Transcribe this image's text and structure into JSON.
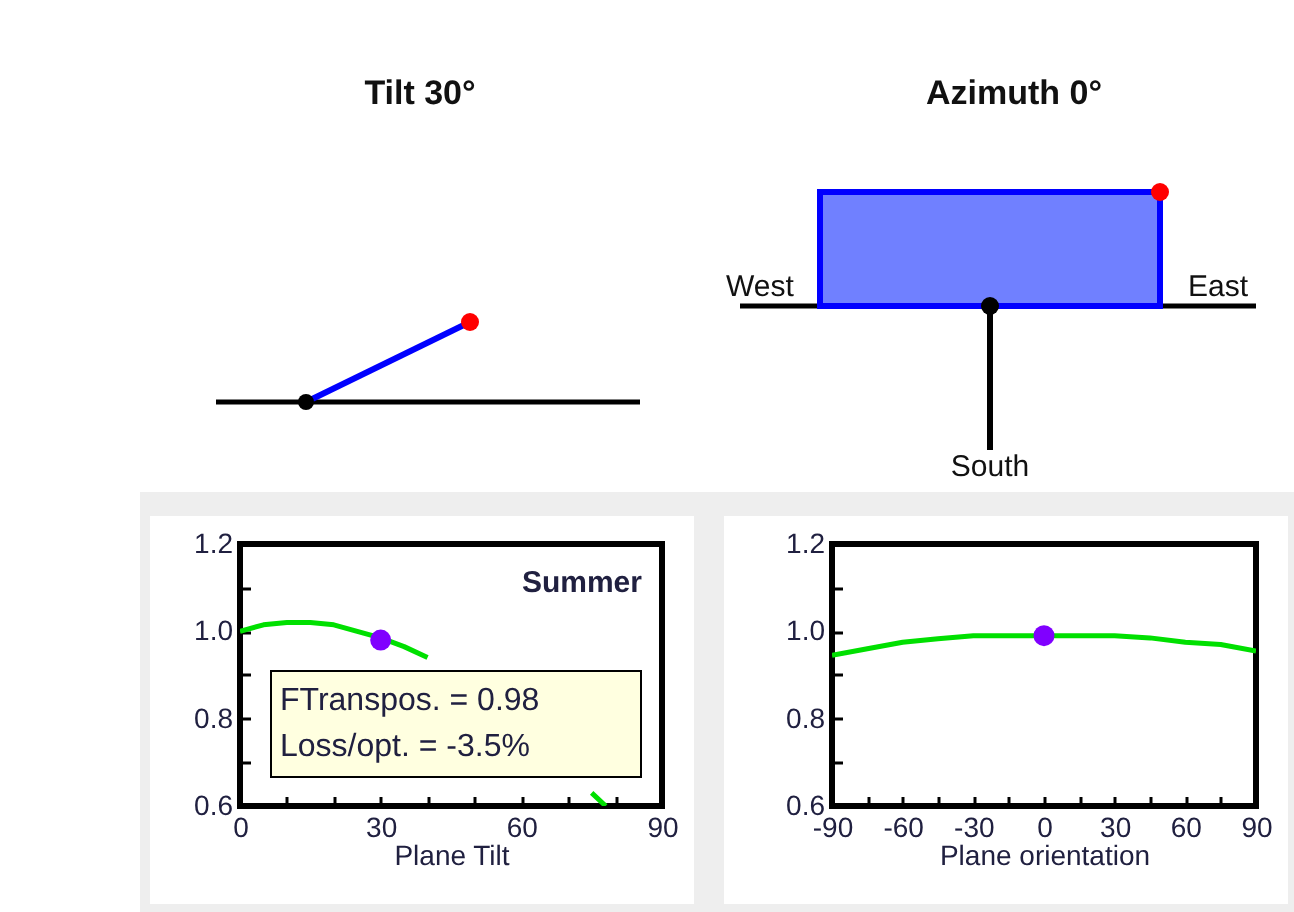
{
  "chart_data": [
    {
      "type": "other",
      "title": "Tilt 30°"
    },
    {
      "type": "other",
      "title": "Azimuth 0°",
      "annotations": [
        "West",
        "East",
        "South"
      ]
    },
    {
      "type": "line",
      "xlabel": "Plane Tilt",
      "x": [
        0,
        5,
        10,
        15,
        20,
        25,
        30,
        35,
        40,
        45,
        50,
        55,
        60,
        65,
        71,
        75,
        78
      ],
      "series": [
        {
          "color": "#00e000",
          "values": [
            1.0,
            1.015,
            1.02,
            1.02,
            1.015,
            1.0,
            0.985,
            0.965,
            0.94,
            null,
            null,
            null,
            null,
            null,
            null,
            0.63,
            0.6
          ]
        },
        {
          "type": "scatter",
          "color": "#8000ff",
          "x": [
            30
          ],
          "values": [
            0.98
          ]
        }
      ],
      "xlim": [
        0,
        90
      ],
      "xticks": [
        0,
        {
          "value": 10,
          "label": null
        },
        {
          "value": 20,
          "label": null
        },
        30,
        {
          "value": 40,
          "label": null
        },
        {
          "value": 50,
          "label": null
        },
        60,
        {
          "value": 70,
          "label": null
        },
        {
          "value": 80,
          "label": null
        },
        90
      ],
      "ylim": [
        0.6,
        1.2
      ],
      "yticks": [
        0.6,
        {
          "value": 0.7,
          "label": null
        },
        0.8,
        {
          "value": 0.9,
          "label": null
        },
        {
          "value": 1,
          "label": "1.0"
        },
        {
          "value": 1.1,
          "label": null
        },
        1.2
      ],
      "annotations": [
        "Summer",
        "FTranspos. = 0.98",
        "Loss/opt. = -3.5%"
      ]
    },
    {
      "type": "line",
      "xlabel": "Plane orientation",
      "x": [
        -90,
        -75,
        -60,
        -45,
        -30,
        -15,
        0,
        15,
        30,
        45,
        60,
        75,
        90
      ],
      "series": [
        {
          "color": "#00e000",
          "values": [
            0.945,
            0.96,
            0.975,
            0.983,
            0.99,
            0.99,
            0.99,
            0.99,
            0.99,
            0.985,
            0.975,
            0.97,
            0.955
          ]
        },
        {
          "type": "scatter",
          "color": "#8000ff",
          "x": [
            0
          ],
          "values": [
            0.99
          ]
        }
      ],
      "xlim": [
        -90,
        90
      ],
      "xticks": [
        -90,
        {
          "value": -75,
          "label": null
        },
        -60,
        {
          "value": -45,
          "label": null
        },
        -30,
        {
          "value": -15,
          "label": null
        },
        0,
        {
          "value": 15,
          "label": null
        },
        30,
        {
          "value": 45,
          "label": null
        },
        60,
        {
          "value": 75,
          "label": null
        },
        90
      ],
      "ylim": [
        0.6,
        1.2
      ],
      "yticks": [
        0.6,
        {
          "value": 0.7,
          "label": null
        },
        0.8,
        {
          "value": 0.9,
          "label": null
        },
        {
          "value": 1,
          "label": "1.0"
        },
        {
          "value": 1.1,
          "label": null
        },
        1.2
      ]
    }
  ]
}
